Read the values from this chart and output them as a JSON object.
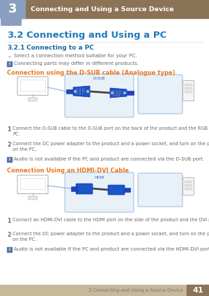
{
  "page_num": "41",
  "chapter_num": "3",
  "chapter_title": "Connecting and Using a Source Device",
  "section": "3.2",
  "section_title": "Connecting and Using a PC",
  "subsection": "3.2.1",
  "subsection_title": "Connecting to a PC",
  "bullet1": "Select a connection method suitable for your PC.",
  "note1": "Connecting parts may differ in different products.",
  "connection1_title": "Connection using the D-SUB cable (Analogue type)",
  "step1a_num": "1",
  "step1a": "Connect the D-SUB cable to the D-SUB port on the back of the product and the RGB port on the\nPC.",
  "step1b_num": "2",
  "step1b": "Connect the DC power adapter to the product and a power socket, and turn on the power switch\non the PC.",
  "note1b": "Audio is not available if the PC and product are connected via the D-SUB port.",
  "connection2_title": "Connection Using an HDMI-DVI Cable",
  "step2a_num": "1",
  "step2a": "Connect an HDMI-DVI cable to the HDMI port on the side of the product and the DVI port on the PC.",
  "step2b_num": "2",
  "step2b": "Connect the DC power adapter to the product and a power socket, and turn on the power switch\non the PC.",
  "note2b": "Audio is not available if the PC and product are connected via the HDMI-DVI port.",
  "footer_text": "3 Connecting and Using a Source Device",
  "header_bg": "#8b7355",
  "header_num_bg_top": "#8a9fc0",
  "header_num_bg_bot": "#6b7fa8",
  "orange_title_color": "#e87722",
  "blue_text_color": "#1e7ab8",
  "subsec_color": "#1a6aa0",
  "body_text_color": "#666666",
  "note_icon_color": "#5577aa",
  "footer_bg": "#c8b89a",
  "footer_num_bg": "#8b7355",
  "bg_color": "#ffffff",
  "diag_box_fill": "#e8f0f8",
  "diag_box_edge": "#99bbdd",
  "connector_blue": "#2244aa",
  "connector_dark": "#1133884",
  "monitor_edge": "#999999",
  "pc_edge": "#aaaaaa",
  "pc_fill": "#f5f5f5"
}
